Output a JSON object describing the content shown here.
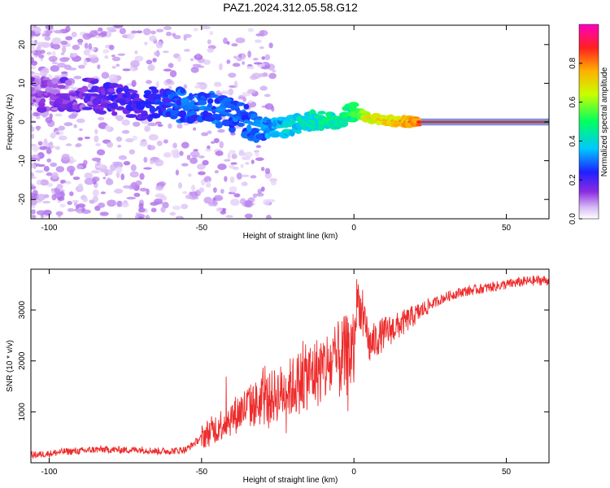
{
  "title": "PAZ1.2024.312.05.58.G12",
  "colors": {
    "snr_line": "#ee2c2c",
    "frame": "#000000",
    "spectrum_low": "#c8a8f0",
    "spectrum_mid": "#00c8ff",
    "spectrum_high": "#ff1a1a"
  },
  "chart_data": [
    {
      "type": "heatmap",
      "title": "PAZ1.2024.312.05.58.G12",
      "xlabel": "Height of straight line (km)",
      "ylabel": "Frequency (Hz)",
      "xlim": [
        -106,
        64
      ],
      "ylim": [
        -25,
        25
      ],
      "x_ticks": [
        -100,
        -50,
        0,
        50
      ],
      "y_ticks": [
        -20,
        -10,
        0,
        10,
        20
      ],
      "colorbar": {
        "label": "Normalized spectral amplitude",
        "range": [
          0.0,
          1.0
        ],
        "ticks": [
          "0.0",
          "0.2",
          "0.4",
          "0.6",
          "0.8"
        ],
        "colormap": "rainbow (violet to magenta)"
      },
      "ridge": {
        "x": [
          -106,
          -95,
          -85,
          -75,
          -65,
          -55,
          -45,
          -38,
          -33,
          -28,
          -22,
          -15,
          -8,
          -3,
          0,
          2,
          5,
          10,
          15,
          20,
          25,
          40,
          64
        ],
        "frequency": [
          7,
          7,
          7,
          5,
          5,
          4,
          3,
          1,
          -0.5,
          -1.5,
          -1,
          0,
          0.5,
          1.5,
          2.5,
          2,
          1,
          0.5,
          0.2,
          0,
          0,
          0,
          0
        ],
        "amplitude": [
          0.12,
          0.15,
          0.18,
          0.22,
          0.25,
          0.3,
          0.3,
          0.3,
          0.32,
          0.35,
          0.4,
          0.45,
          0.48,
          0.5,
          0.55,
          0.6,
          0.72,
          0.75,
          0.8,
          0.85,
          0.95,
          0.97,
          0.97
        ]
      }
    },
    {
      "type": "line",
      "xlabel": "Height of straight line (km)",
      "ylabel": "SNR (10 * v/v)",
      "xlim": [
        -106,
        64
      ],
      "ylim": [
        0,
        3800
      ],
      "x_ticks": [
        -100,
        -50,
        0,
        50
      ],
      "y_ticks": [
        1000,
        2000,
        3000
      ],
      "series": [
        {
          "x": [
            -106,
            -100,
            -95,
            -90,
            -85,
            -80,
            -75,
            -70,
            -65,
            -60,
            -55,
            -50,
            -45,
            -40,
            -35,
            -30,
            -25,
            -20,
            -15,
            -10,
            -5,
            0,
            1,
            5,
            10,
            15,
            20,
            25,
            30,
            35,
            40,
            45,
            50,
            55,
            60,
            64
          ],
          "y": [
            150,
            180,
            220,
            230,
            260,
            260,
            250,
            260,
            230,
            230,
            260,
            500,
            700,
            900,
            1100,
            1200,
            1350,
            1500,
            1700,
            1850,
            2000,
            2200,
            3300,
            2300,
            2550,
            2700,
            2900,
            3100,
            3250,
            3350,
            3400,
            3450,
            3500,
            3550,
            3580,
            3580
          ]
        }
      ]
    }
  ]
}
